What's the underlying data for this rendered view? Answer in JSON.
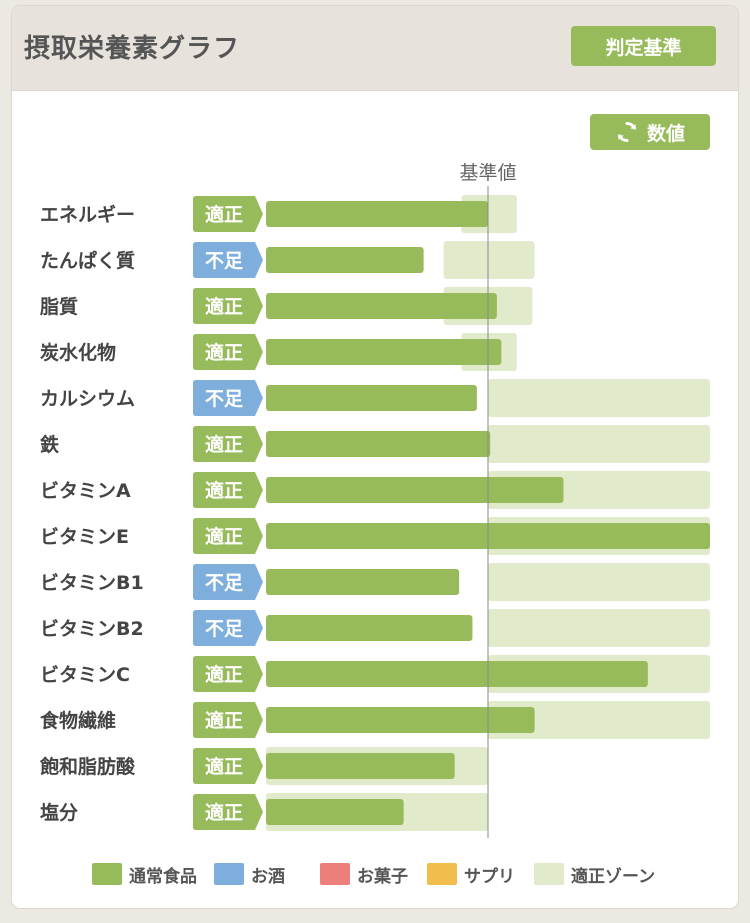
{
  "header": {
    "title": "摂取栄養素グラフ",
    "criteria_button": "判定基準"
  },
  "toolbar": {
    "numeric_button": "数値"
  },
  "chart_data": {
    "type": "bar",
    "orientation": "horizontal",
    "reference_label": "基準値",
    "reference_value": 100,
    "xlim": [
      0,
      200
    ],
    "categories": [
      "エネルギー",
      "たんぱく質",
      "脂質",
      "炭水化物",
      "カルシウム",
      "鉄",
      "ビタミンA",
      "ビタミンE",
      "ビタミンB1",
      "ビタミンB2",
      "ビタミンC",
      "食物繊維",
      "飽和脂肪酸",
      "塩分"
    ],
    "status": [
      "適正",
      "不足",
      "適正",
      "適正",
      "不足",
      "適正",
      "適正",
      "適正",
      "不足",
      "不足",
      "適正",
      "適正",
      "適正",
      "適正"
    ],
    "values": [
      100,
      71,
      104,
      106,
      95,
      101,
      134,
      200,
      87,
      93,
      172,
      121,
      85,
      62
    ],
    "appropriate_zone": [
      [
        88,
        113
      ],
      [
        80,
        121
      ],
      [
        80,
        120
      ],
      [
        88,
        113
      ],
      [
        100,
        200
      ],
      [
        100,
        200
      ],
      [
        100,
        200
      ],
      [
        100,
        200
      ],
      [
        100,
        200
      ],
      [
        100,
        200
      ],
      [
        100,
        200
      ],
      [
        100,
        200
      ],
      [
        0,
        100
      ],
      [
        0,
        100
      ]
    ],
    "legend": [
      {
        "name": "通常食品",
        "color": "#97bb5a"
      },
      {
        "name": "お酒",
        "color": "#7eaedb"
      },
      {
        "name": "お菓子",
        "color": "#ec7f7a"
      },
      {
        "name": "サプリ",
        "color": "#f2bd4f"
      },
      {
        "name": "適正ゾーン",
        "color": "#e1eacb"
      }
    ],
    "status_colors": {
      "適正": "#97bb5a",
      "不足": "#7eaedb"
    }
  }
}
